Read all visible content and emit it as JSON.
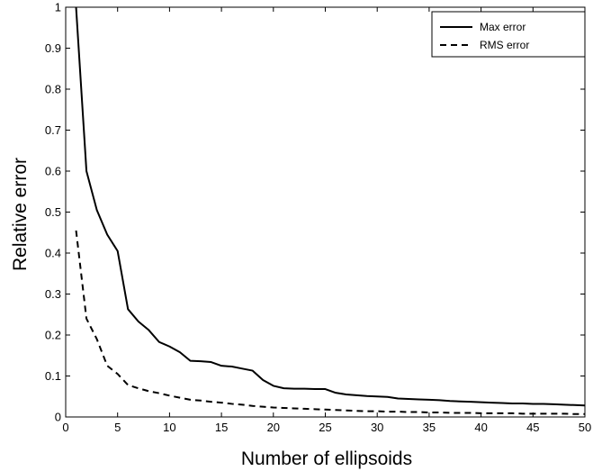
{
  "chart_data": {
    "type": "line",
    "xlabel": "Number of ellipsoids",
    "ylabel": "Relative error",
    "xlim": [
      0,
      50
    ],
    "ylim": [
      0,
      1
    ],
    "xticks": [
      0,
      5,
      10,
      15,
      20,
      25,
      30,
      35,
      40,
      45,
      50
    ],
    "yticks": [
      0,
      0.1,
      0.2,
      0.3,
      0.4,
      0.5,
      0.6,
      0.7,
      0.8,
      0.9,
      1
    ],
    "grid": false,
    "legend_position": "top-right",
    "series": [
      {
        "name": "Max error",
        "style": "solid",
        "x": [
          1,
          2,
          3,
          4,
          5,
          6,
          7,
          8,
          9,
          10,
          11,
          12,
          13,
          14,
          15,
          16,
          17,
          18,
          19,
          20,
          21,
          22,
          23,
          24,
          25,
          26,
          27,
          28,
          29,
          30,
          31,
          32,
          33,
          34,
          35,
          36,
          37,
          38,
          39,
          40,
          41,
          42,
          43,
          44,
          45,
          46,
          47,
          48,
          49,
          50
        ],
        "y": [
          1.0,
          0.6,
          0.505,
          0.445,
          0.405,
          0.263,
          0.233,
          0.212,
          0.183,
          0.172,
          0.158,
          0.137,
          0.136,
          0.134,
          0.125,
          0.123,
          0.118,
          0.113,
          0.09,
          0.076,
          0.07,
          0.069,
          0.069,
          0.068,
          0.068,
          0.059,
          0.055,
          0.053,
          0.051,
          0.05,
          0.049,
          0.045,
          0.044,
          0.043,
          0.042,
          0.041,
          0.039,
          0.038,
          0.037,
          0.036,
          0.035,
          0.034,
          0.033,
          0.033,
          0.032,
          0.032,
          0.031,
          0.03,
          0.029,
          0.028
        ]
      },
      {
        "name": "RMS error",
        "style": "dashed",
        "x": [
          1,
          2,
          3,
          4,
          5,
          6,
          7,
          8,
          9,
          10,
          11,
          12,
          13,
          14,
          15,
          16,
          17,
          18,
          19,
          20,
          21,
          22,
          23,
          24,
          25,
          26,
          27,
          28,
          29,
          30,
          31,
          32,
          33,
          34,
          35,
          36,
          37,
          38,
          39,
          40,
          41,
          42,
          43,
          44,
          45,
          46,
          47,
          48,
          49,
          50
        ],
        "y": [
          0.455,
          0.24,
          0.19,
          0.125,
          0.105,
          0.078,
          0.07,
          0.063,
          0.058,
          0.052,
          0.047,
          0.042,
          0.04,
          0.037,
          0.035,
          0.032,
          0.03,
          0.027,
          0.025,
          0.023,
          0.022,
          0.021,
          0.02,
          0.019,
          0.018,
          0.017,
          0.016,
          0.015,
          0.014,
          0.014,
          0.013,
          0.013,
          0.012,
          0.012,
          0.011,
          0.011,
          0.01,
          0.01,
          0.01,
          0.009,
          0.009,
          0.009,
          0.009,
          0.008,
          0.008,
          0.008,
          0.008,
          0.008,
          0.007,
          0.007
        ]
      }
    ]
  }
}
